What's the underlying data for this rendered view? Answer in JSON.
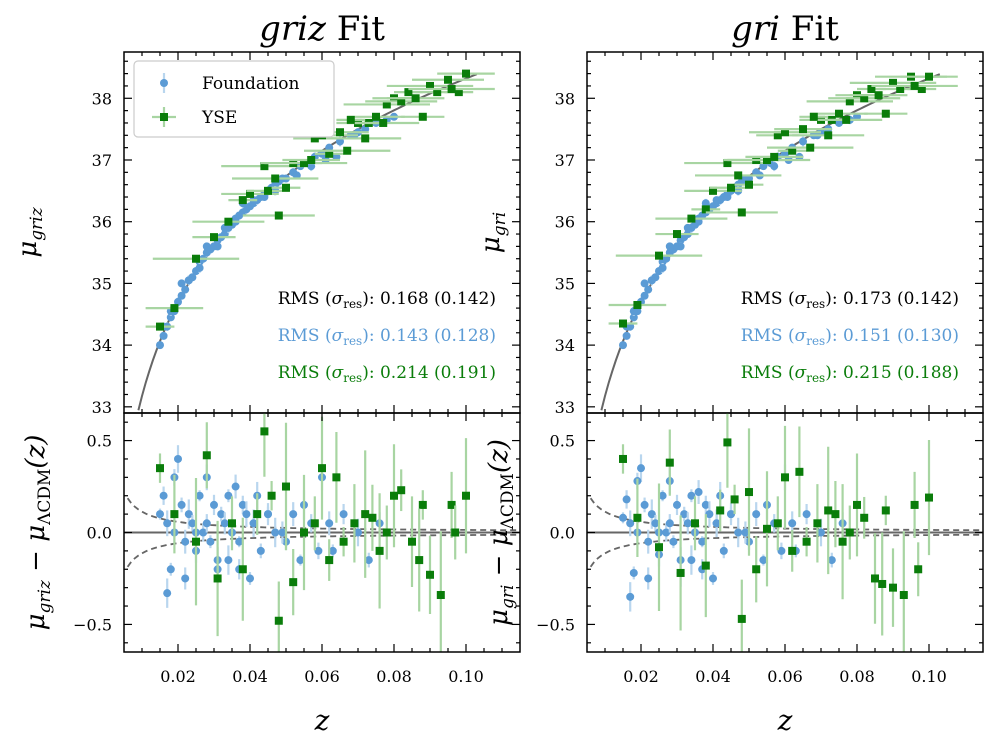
{
  "chart_data": [
    {
      "type": "scatter",
      "panel": "griz-distance",
      "title_italic": "griz",
      "title_rest": " Fit",
      "ylabel_main": "μ",
      "ylabel_sub": "griz",
      "xlim": [
        0.005,
        0.115
      ],
      "ylim": [
        32.9,
        38.75
      ],
      "yticks": [
        "33",
        "34",
        "35",
        "36",
        "37",
        "38"
      ],
      "legend": {
        "position": "top-left",
        "entries": [
          "Foundation",
          "YSE"
        ]
      },
      "rms": [
        {
          "prefix": "RMS (",
          "sym": "σ",
          "sub": "res",
          "suffix": "): 0.168 (0.142)",
          "color": "#000000"
        },
        {
          "prefix": "RMS (",
          "sym": "σ",
          "sub": "res",
          "suffix": "): 0.143 (0.128)",
          "color": "#5b9bd5"
        },
        {
          "prefix": "RMS (",
          "sym": "σ",
          "sub": "res",
          "suffix": "): 0.214 (0.191)",
          "color": "#0a7d0a"
        }
      ],
      "model": "distance-modulus curve (grey)",
      "series": [
        {
          "name": "Foundation",
          "color": "#5b9bd5",
          "x": [
            0.015,
            0.016,
            0.017,
            0.018,
            0.019,
            0.02,
            0.021,
            0.022,
            0.023,
            0.024,
            0.025,
            0.026,
            0.027,
            0.028,
            0.029,
            0.03,
            0.031,
            0.032,
            0.033,
            0.034,
            0.035,
            0.036,
            0.037,
            0.038,
            0.039,
            0.04,
            0.041,
            0.042,
            0.043,
            0.044,
            0.045,
            0.046,
            0.047,
            0.048,
            0.05,
            0.052,
            0.054,
            0.056,
            0.058,
            0.06,
            0.062,
            0.065,
            0.068,
            0.07,
            0.072,
            0.075,
            0.078,
            0.08,
            0.016,
            0.018,
            0.021,
            0.023,
            0.026,
            0.028,
            0.031,
            0.033,
            0.036,
            0.038,
            0.041,
            0.044,
            0.047,
            0.049,
            0.053,
            0.057,
            0.061,
            0.064,
            0.069
          ],
          "y": [
            34.0,
            34.15,
            34.3,
            34.45,
            34.55,
            34.7,
            34.8,
            34.9,
            35.05,
            35.1,
            35.2,
            35.35,
            35.4,
            35.5,
            35.55,
            35.6,
            35.7,
            35.75,
            35.8,
            35.9,
            35.95,
            36.05,
            36.1,
            36.15,
            36.2,
            36.25,
            36.3,
            36.35,
            36.4,
            36.45,
            36.5,
            36.55,
            36.6,
            36.65,
            36.7,
            36.8,
            36.9,
            36.95,
            37.05,
            37.1,
            37.2,
            37.3,
            37.4,
            37.45,
            37.5,
            37.6,
            37.65,
            37.7,
            34.3,
            34.55,
            35.0,
            35.05,
            35.25,
            35.6,
            35.6,
            35.9,
            36.0,
            36.3,
            36.35,
            36.4,
            36.5,
            36.7,
            36.75,
            36.9,
            37.0,
            37.05,
            37.4
          ]
        },
        {
          "name": "YSE",
          "color": "#0a7d0a",
          "x": [
            0.015,
            0.019,
            0.025,
            0.03,
            0.034,
            0.038,
            0.04,
            0.044,
            0.045,
            0.048,
            0.05,
            0.052,
            0.055,
            0.058,
            0.06,
            0.062,
            0.065,
            0.067,
            0.07,
            0.072,
            0.073,
            0.075,
            0.078,
            0.08,
            0.082,
            0.084,
            0.086,
            0.09,
            0.092,
            0.095,
            0.098,
            0.1,
            0.096,
            0.088,
            0.077,
            0.068,
            0.057,
            0.047
          ],
          "y": [
            34.3,
            34.6,
            35.4,
            35.75,
            36.0,
            36.35,
            36.45,
            36.9,
            36.5,
            36.1,
            36.55,
            36.95,
            36.95,
            37.35,
            37.4,
            37.1,
            37.45,
            37.15,
            37.6,
            37.35,
            37.6,
            37.7,
            37.9,
            38.0,
            37.95,
            38.1,
            38.0,
            38.2,
            38.1,
            38.3,
            38.1,
            38.4,
            38.15,
            37.7,
            37.6,
            37.65,
            37.0,
            36.7
          ]
        }
      ]
    },
    {
      "type": "scatter",
      "panel": "griz-residual",
      "ylabel_main": "μ",
      "ylabel_sub": "griz",
      "ylabel_rest": " − μ",
      "ylabel_sub2": "ΛCDM",
      "ylabel_tail": "(z)",
      "xlabel": "z",
      "xlim": [
        0.005,
        0.115
      ],
      "ylim": [
        -0.65,
        0.65
      ],
      "yticks": [
        "−0.5",
        "0.0",
        "0.5"
      ],
      "xticks": [
        "0.02",
        "0.04",
        "0.06",
        "0.08",
        "0.10"
      ],
      "series": [
        {
          "name": "Foundation",
          "color": "#5b9bd5",
          "x": [
            0.015,
            0.016,
            0.017,
            0.018,
            0.019,
            0.02,
            0.021,
            0.022,
            0.023,
            0.024,
            0.025,
            0.026,
            0.027,
            0.028,
            0.029,
            0.03,
            0.031,
            0.032,
            0.033,
            0.034,
            0.035,
            0.036,
            0.037,
            0.038,
            0.039,
            0.04,
            0.041,
            0.042,
            0.043,
            0.045,
            0.047,
            0.05,
            0.052,
            0.054,
            0.057,
            0.06,
            0.063,
            0.066,
            0.07,
            0.073,
            0.076,
            0.017,
            0.019,
            0.022,
            0.025,
            0.028,
            0.031,
            0.034,
            0.037,
            0.041,
            0.045,
            0.049,
            0.055,
            0.059,
            0.062
          ],
          "y": [
            0.1,
            0.2,
            0.05,
            -0.2,
            0.0,
            0.4,
            0.15,
            -0.25,
            0.1,
            0.05,
            -0.1,
            0.2,
            0.0,
            0.3,
            -0.05,
            0.15,
            -0.2,
            0.1,
            0.05,
            -0.15,
            0.0,
            0.25,
            -0.05,
            0.15,
            0.1,
            -0.25,
            0.05,
            0.2,
            -0.1,
            0.1,
            0.0,
            -0.05,
            0.1,
            -0.15,
            0.05,
            0.3,
            -0.1,
            0.1,
            0.0,
            -0.15,
            0.05,
            -0.33,
            0.3,
            -0.05,
            0.0,
            0.05,
            -0.15,
            0.2,
            -0.2,
            0.05,
            0.1,
            0.0,
            0.15,
            -0.1,
            0.05
          ]
        },
        {
          "name": "YSE",
          "color": "#0a7d0a",
          "x": [
            0.015,
            0.019,
            0.025,
            0.028,
            0.031,
            0.035,
            0.038,
            0.042,
            0.044,
            0.046,
            0.048,
            0.05,
            0.052,
            0.055,
            0.058,
            0.06,
            0.062,
            0.064,
            0.066,
            0.069,
            0.072,
            0.074,
            0.076,
            0.078,
            0.08,
            0.082,
            0.085,
            0.088,
            0.09,
            0.093,
            0.096,
            0.1,
            0.097,
            0.087
          ],
          "y": [
            0.35,
            0.1,
            -0.05,
            0.42,
            -0.25,
            0.05,
            -0.2,
            0.1,
            0.55,
            0.2,
            -0.48,
            0.25,
            -0.27,
            0.0,
            0.05,
            0.35,
            -0.15,
            0.3,
            -0.05,
            0.05,
            0.1,
            0.08,
            -0.1,
            0.0,
            0.2,
            0.23,
            -0.05,
            0.15,
            -0.23,
            -0.34,
            0.15,
            0.2,
            0.0,
            -0.15
          ]
        }
      ]
    },
    {
      "type": "scatter",
      "panel": "gri-distance",
      "title_italic": "gri",
      "title_rest": " Fit",
      "ylabel_main": "μ",
      "ylabel_sub": "gri",
      "xlim": [
        0.005,
        0.115
      ],
      "ylim": [
        32.9,
        38.75
      ],
      "rms": [
        {
          "prefix": "RMS (",
          "sym": "σ",
          "sub": "res",
          "suffix": "): 0.173 (0.142)",
          "color": "#000000"
        },
        {
          "prefix": "RMS (",
          "sym": "σ",
          "sub": "res",
          "suffix": "): 0.151 (0.130)",
          "color": "#5b9bd5"
        },
        {
          "prefix": "RMS (",
          "sym": "σ",
          "sub": "res",
          "suffix": "): 0.215 (0.188)",
          "color": "#0a7d0a"
        }
      ],
      "model": "distance-modulus curve (grey)",
      "series": [
        {
          "name": "Foundation",
          "color": "#5b9bd5",
          "x": [
            0.015,
            0.016,
            0.017,
            0.018,
            0.019,
            0.02,
            0.021,
            0.022,
            0.023,
            0.024,
            0.025,
            0.026,
            0.027,
            0.028,
            0.029,
            0.03,
            0.031,
            0.032,
            0.033,
            0.034,
            0.035,
            0.036,
            0.037,
            0.038,
            0.039,
            0.04,
            0.041,
            0.042,
            0.043,
            0.044,
            0.045,
            0.046,
            0.047,
            0.048,
            0.05,
            0.052,
            0.054,
            0.056,
            0.058,
            0.06,
            0.062,
            0.065,
            0.068,
            0.07,
            0.072,
            0.075,
            0.078,
            0.08,
            0.016,
            0.018,
            0.021,
            0.023,
            0.026,
            0.028,
            0.031,
            0.033,
            0.036,
            0.038,
            0.041,
            0.044,
            0.047,
            0.049,
            0.053,
            0.057,
            0.061,
            0.064,
            0.069
          ],
          "y": [
            34.0,
            34.15,
            34.3,
            34.45,
            34.55,
            34.7,
            34.8,
            34.9,
            35.05,
            35.1,
            35.2,
            35.35,
            35.4,
            35.5,
            35.55,
            35.6,
            35.7,
            35.75,
            35.8,
            35.9,
            35.95,
            36.05,
            36.1,
            36.15,
            36.2,
            36.25,
            36.3,
            36.35,
            36.4,
            36.45,
            36.5,
            36.55,
            36.6,
            36.65,
            36.7,
            36.8,
            36.9,
            36.95,
            37.05,
            37.1,
            37.2,
            37.3,
            37.4,
            37.45,
            37.5,
            37.6,
            37.65,
            37.7,
            34.3,
            34.55,
            35.0,
            35.05,
            35.25,
            35.6,
            35.6,
            35.9,
            36.0,
            36.3,
            36.35,
            36.4,
            36.5,
            36.7,
            36.75,
            36.9,
            37.0,
            37.05,
            37.4
          ]
        },
        {
          "name": "YSE",
          "color": "#0a7d0a",
          "x": [
            0.015,
            0.019,
            0.025,
            0.03,
            0.034,
            0.038,
            0.04,
            0.044,
            0.045,
            0.048,
            0.05,
            0.052,
            0.055,
            0.058,
            0.06,
            0.062,
            0.065,
            0.067,
            0.07,
            0.072,
            0.073,
            0.075,
            0.078,
            0.08,
            0.082,
            0.084,
            0.086,
            0.09,
            0.092,
            0.095,
            0.098,
            0.1,
            0.096,
            0.088,
            0.077,
            0.068,
            0.057,
            0.047
          ],
          "y": [
            34.35,
            34.65,
            35.45,
            35.8,
            36.05,
            36.2,
            36.5,
            36.95,
            36.55,
            36.15,
            36.6,
            37.0,
            37.0,
            37.4,
            37.45,
            37.15,
            37.5,
            37.2,
            37.65,
            37.4,
            37.65,
            37.75,
            37.95,
            38.05,
            38.0,
            38.15,
            38.05,
            38.25,
            38.15,
            38.35,
            38.15,
            38.35,
            38.2,
            37.75,
            37.65,
            37.7,
            37.05,
            36.75
          ]
        }
      ]
    },
    {
      "type": "scatter",
      "panel": "gri-residual",
      "ylabel_main": "μ",
      "ylabel_sub": "gri",
      "ylabel_rest": " − μ",
      "ylabel_sub2": "ΛCDM",
      "ylabel_tail": "(z)",
      "xlabel": "z",
      "xlim": [
        0.005,
        0.115
      ],
      "ylim": [
        -0.65,
        0.65
      ],
      "series": [
        {
          "name": "Foundation",
          "color": "#5b9bd5",
          "x": [
            0.015,
            0.016,
            0.017,
            0.018,
            0.019,
            0.02,
            0.021,
            0.022,
            0.023,
            0.024,
            0.025,
            0.026,
            0.027,
            0.028,
            0.029,
            0.03,
            0.031,
            0.032,
            0.033,
            0.034,
            0.035,
            0.036,
            0.037,
            0.038,
            0.039,
            0.04,
            0.041,
            0.042,
            0.043,
            0.045,
            0.047,
            0.05,
            0.052,
            0.054,
            0.057,
            0.06,
            0.063,
            0.066,
            0.07,
            0.073,
            0.076,
            0.017,
            0.019,
            0.022,
            0.025,
            0.028,
            0.031,
            0.034,
            0.037,
            0.041,
            0.045,
            0.049,
            0.055,
            0.059,
            0.062
          ],
          "y": [
            0.08,
            0.18,
            0.05,
            -0.22,
            0.0,
            0.35,
            0.15,
            -0.25,
            0.1,
            0.05,
            -0.12,
            0.2,
            0.0,
            0.28,
            -0.05,
            0.15,
            -0.22,
            0.1,
            0.05,
            -0.15,
            0.0,
            0.22,
            -0.05,
            0.15,
            0.1,
            -0.25,
            0.05,
            0.2,
            -0.1,
            0.1,
            0.0,
            -0.05,
            0.1,
            -0.15,
            0.05,
            0.3,
            -0.1,
            0.1,
            0.0,
            -0.15,
            0.05,
            -0.35,
            0.28,
            -0.05,
            0.0,
            0.05,
            -0.15,
            0.2,
            -0.2,
            0.05,
            0.1,
            0.0,
            0.15,
            -0.1,
            0.05
          ]
        },
        {
          "name": "YSE",
          "color": "#0a7d0a",
          "x": [
            0.015,
            0.019,
            0.025,
            0.028,
            0.031,
            0.035,
            0.038,
            0.042,
            0.044,
            0.046,
            0.048,
            0.05,
            0.052,
            0.055,
            0.058,
            0.06,
            0.062,
            0.064,
            0.066,
            0.069,
            0.072,
            0.074,
            0.076,
            0.078,
            0.08,
            0.082,
            0.085,
            0.088,
            0.09,
            0.093,
            0.096,
            0.1,
            0.097,
            0.087
          ],
          "y": [
            0.4,
            0.08,
            -0.08,
            0.38,
            -0.22,
            0.05,
            -0.18,
            0.12,
            0.49,
            0.18,
            -0.47,
            0.22,
            -0.2,
            0.02,
            0.05,
            0.3,
            -0.1,
            0.33,
            -0.05,
            0.05,
            0.12,
            0.1,
            -0.05,
            0.0,
            0.15,
            0.08,
            -0.25,
            0.12,
            -0.3,
            -0.34,
            0.15,
            0.19,
            -0.2,
            -0.28
          ]
        }
      ]
    }
  ]
}
